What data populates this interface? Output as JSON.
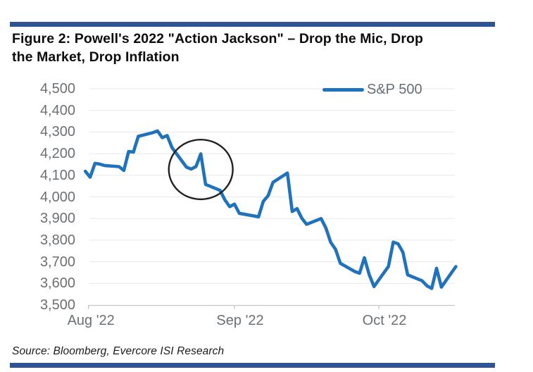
{
  "figure": {
    "title_line1": "Figure 2: Powell's 2022 \"Action Jackson\" – Drop the Mic, Drop",
    "title_line2": "the Market, Drop Inflation"
  },
  "source_note": "Source: Bloomberg, Evercore ISI Research",
  "accent_bar_color": "#2f5496",
  "chart_data": {
    "type": "line",
    "title": "Figure 2: Powell's 2022 \"Action Jackson\" – Drop the Mic, Drop the Market, Drop Inflation",
    "xlabel": "",
    "ylabel": "",
    "ylim": [
      3500,
      4500
    ],
    "x_range": [
      "2022-08-01",
      "2022-10-17"
    ],
    "grid": true,
    "legend_position": "top-right",
    "line_color": "#2072bd",
    "grid_color": "#ececec",
    "axis_color": "#c6c6c6",
    "tick_label_color": "#6c6f73",
    "y_ticks": [
      {
        "label": "4,500",
        "value": 4500
      },
      {
        "label": "4,400",
        "value": 4400
      },
      {
        "label": "4,300",
        "value": 4300
      },
      {
        "label": "4,200",
        "value": 4200
      },
      {
        "label": "4,100",
        "value": 4100
      },
      {
        "label": "4,000",
        "value": 4000
      },
      {
        "label": "3,900",
        "value": 3900
      },
      {
        "label": "3,800",
        "value": 3800
      },
      {
        "label": "3,700",
        "value": 3700
      },
      {
        "label": "3,600",
        "value": 3600
      },
      {
        "label": "3,500",
        "value": 3500
      }
    ],
    "x_ticks": [
      {
        "label": "Aug '22",
        "date": "2022-08-01"
      },
      {
        "label": "Sep '22",
        "date": "2022-09-01"
      },
      {
        "label": "Oct '22",
        "date": "2022-10-01"
      }
    ],
    "series": [
      {
        "name": "S&P 500",
        "color": "#2072bd",
        "points": [
          [
            "2022-08-01",
            4118.63
          ],
          [
            "2022-08-02",
            4091.19
          ],
          [
            "2022-08-03",
            4155.17
          ],
          [
            "2022-08-04",
            4151.94
          ],
          [
            "2022-08-05",
            4145.19
          ],
          [
            "2022-08-08",
            4140.06
          ],
          [
            "2022-08-09",
            4122.47
          ],
          [
            "2022-08-10",
            4210.24
          ],
          [
            "2022-08-11",
            4207.27
          ],
          [
            "2022-08-12",
            4280.15
          ],
          [
            "2022-08-15",
            4297.14
          ],
          [
            "2022-08-16",
            4305.2
          ],
          [
            "2022-08-17",
            4274.04
          ],
          [
            "2022-08-18",
            4283.74
          ],
          [
            "2022-08-19",
            4228.48
          ],
          [
            "2022-08-22",
            4137.99
          ],
          [
            "2022-08-23",
            4128.73
          ],
          [
            "2022-08-24",
            4140.77
          ],
          [
            "2022-08-25",
            4199.12
          ],
          [
            "2022-08-26",
            4057.66
          ],
          [
            "2022-08-29",
            4030.61
          ],
          [
            "2022-08-30",
            3986.16
          ],
          [
            "2022-08-31",
            3955.0
          ],
          [
            "2022-09-01",
            3966.85
          ],
          [
            "2022-09-02",
            3924.26
          ],
          [
            "2022-09-06",
            3908.19
          ],
          [
            "2022-09-07",
            3979.87
          ],
          [
            "2022-09-08",
            4006.18
          ],
          [
            "2022-09-09",
            4067.36
          ],
          [
            "2022-09-12",
            4110.41
          ],
          [
            "2022-09-13",
            3932.69
          ],
          [
            "2022-09-14",
            3946.01
          ],
          [
            "2022-09-15",
            3901.35
          ],
          [
            "2022-09-16",
            3873.33
          ],
          [
            "2022-09-19",
            3899.89
          ],
          [
            "2022-09-20",
            3855.93
          ],
          [
            "2022-09-21",
            3789.93
          ],
          [
            "2022-09-22",
            3757.99
          ],
          [
            "2022-09-23",
            3693.23
          ],
          [
            "2022-09-26",
            3655.04
          ],
          [
            "2022-09-27",
            3647.29
          ],
          [
            "2022-09-28",
            3719.04
          ],
          [
            "2022-09-29",
            3640.47
          ],
          [
            "2022-09-30",
            3585.62
          ],
          [
            "2022-10-03",
            3678.43
          ],
          [
            "2022-10-04",
            3790.93
          ],
          [
            "2022-10-05",
            3783.28
          ],
          [
            "2022-10-06",
            3744.52
          ],
          [
            "2022-10-07",
            3639.66
          ],
          [
            "2022-10-10",
            3612.39
          ],
          [
            "2022-10-11",
            3588.84
          ],
          [
            "2022-10-12",
            3577.03
          ],
          [
            "2022-10-13",
            3669.91
          ],
          [
            "2022-10-14",
            3583.07
          ],
          [
            "2022-10-17",
            3677.95
          ]
        ]
      }
    ],
    "annotations": [
      {
        "type": "ellipse",
        "center_date": "2022-08-25",
        "center_value": 4127,
        "radius_days": 6.65,
        "radius_value": 138,
        "color": "#222222"
      }
    ]
  }
}
